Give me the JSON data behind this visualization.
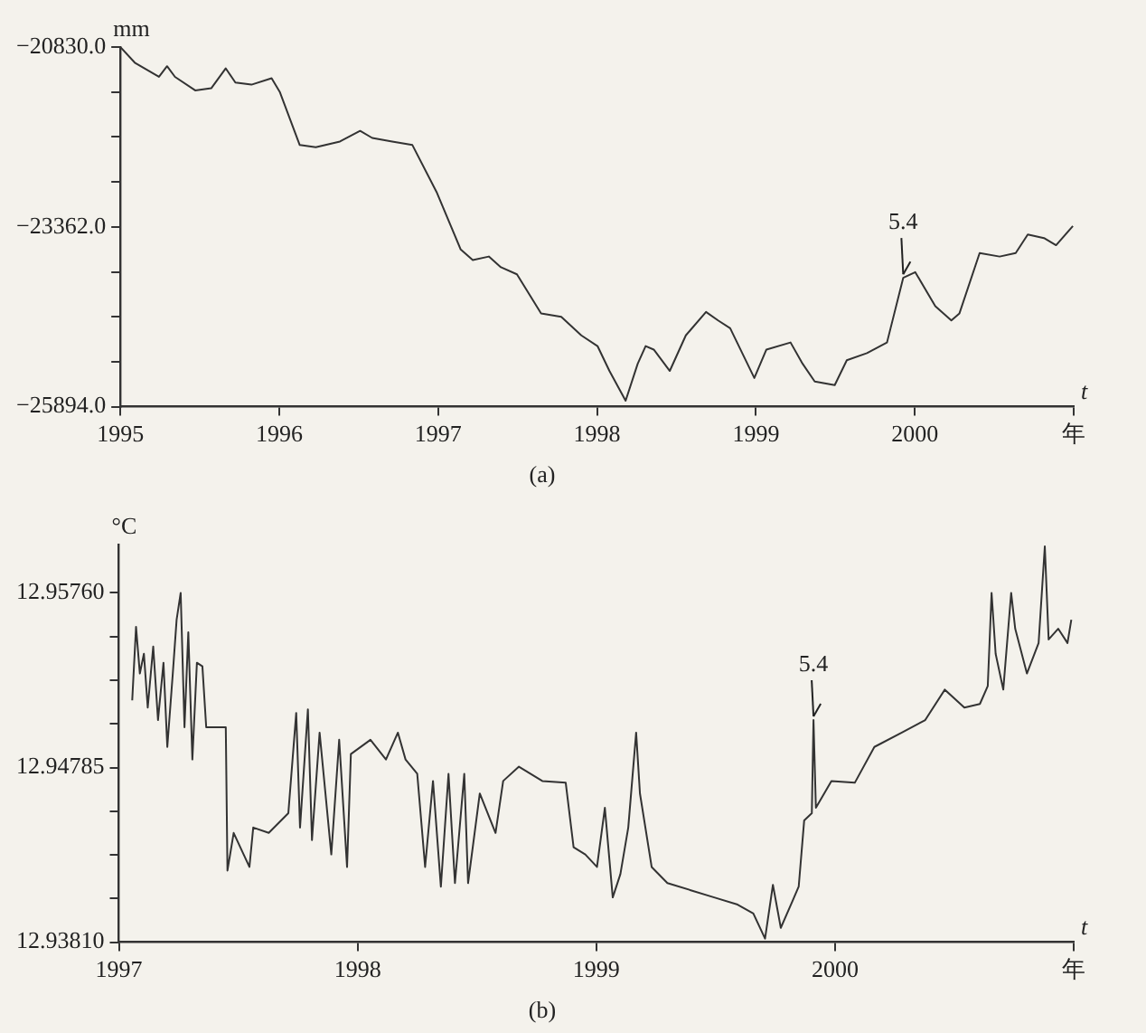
{
  "chart_data": [
    {
      "type": "line",
      "title": "(a)",
      "ylabel": "mm",
      "xlabel": "t",
      "xlim": [
        1995,
        2001
      ],
      "xticks": [
        1995,
        1996,
        1997,
        1998,
        1999,
        2000,
        {
          "value": 2001,
          "label": "年"
        }
      ],
      "ylim": [
        -25894,
        -20830
      ],
      "yticks": [
        {
          "value": -25894,
          "label": "−25894.0"
        },
        {
          "value": -25261,
          "label": null
        },
        {
          "value": -24628,
          "label": null
        },
        {
          "value": -23995,
          "label": null
        },
        {
          "value": -23362,
          "label": "−23362.0"
        },
        {
          "value": -22729,
          "label": null
        },
        {
          "value": -22096,
          "label": null
        },
        {
          "value": -21463,
          "label": null
        },
        {
          "value": -20830,
          "label": "−20830.0"
        }
      ],
      "grid": false,
      "legend": false,
      "annotations": [
        {
          "text": "5.4",
          "x": 1999.927,
          "y": -24080
        }
      ],
      "series": [
        {
          "color": "#333333",
          "x": [
            1995.0,
            1995.091,
            1995.243,
            1995.294,
            1995.344,
            1995.471,
            1995.572,
            1995.663,
            1995.724,
            1995.825,
            1995.952,
            1996.003,
            1996.129,
            1996.23,
            1996.382,
            1996.509,
            1996.585,
            1996.711,
            1996.838,
            1996.99,
            1997.142,
            1997.218,
            1997.319,
            1997.395,
            1997.496,
            1997.648,
            1997.775,
            1997.901,
            1998.003,
            1998.078,
            1998.18,
            1998.256,
            1998.306,
            1998.357,
            1998.458,
            1998.559,
            1998.686,
            1998.762,
            1998.838,
            1998.99,
            1999.066,
            1999.218,
            1999.294,
            1999.37,
            1999.496,
            1999.572,
            1999.699,
            1999.825,
            1999.927,
            2000.003,
            2000.129,
            2000.23,
            2000.281,
            2000.408,
            2000.534,
            2000.635,
            2000.711,
            2000.813,
            2000.889,
            2000.995
          ],
          "values": [
            -20830,
            -21050,
            -21250,
            -21100,
            -21250,
            -21440,
            -21410,
            -21130,
            -21330,
            -21360,
            -21270,
            -21460,
            -22210,
            -22240,
            -22160,
            -22010,
            -22110,
            -22160,
            -22210,
            -22870,
            -23680,
            -23830,
            -23780,
            -23930,
            -24030,
            -24580,
            -24630,
            -24890,
            -25040,
            -25390,
            -25810,
            -25290,
            -25040,
            -25090,
            -25390,
            -24890,
            -24560,
            -24680,
            -24790,
            -25490,
            -25090,
            -24990,
            -25290,
            -25540,
            -25590,
            -25240,
            -25140,
            -24990,
            -24080,
            -24000,
            -24480,
            -24680,
            -24580,
            -23730,
            -23780,
            -23730,
            -23470,
            -23520,
            -23620,
            -23350
          ]
        }
      ]
    },
    {
      "type": "line",
      "title": "(b)",
      "ylabel": "°C",
      "xlabel": "t",
      "xlim": [
        1997,
        2001
      ],
      "xticks": [
        1997,
        1998,
        1999,
        2000,
        {
          "value": 2001,
          "label": "年"
        }
      ],
      "ylim": [
        12.9381,
        12.9603
      ],
      "yticks": [
        {
          "value": 12.9381,
          "label": "12.93810"
        },
        {
          "value": 12.940538,
          "label": null
        },
        {
          "value": 12.942975,
          "label": null
        },
        {
          "value": 12.945413,
          "label": null
        },
        {
          "value": 12.94785,
          "label": "12.94785"
        },
        {
          "value": 12.950288,
          "label": null
        },
        {
          "value": 12.952725,
          "label": null
        },
        {
          "value": 12.955163,
          "label": null
        },
        {
          "value": 12.9576,
          "label": "12.95760"
        }
      ],
      "grid": false,
      "legend": false,
      "annotations": [
        {
          "text": "5.4",
          "x": 1999.91,
          "y": 12.9505
        }
      ],
      "series": [
        {
          "color": "#333333",
          "x": [
            1997.056,
            1997.072,
            1997.088,
            1997.105,
            1997.121,
            1997.144,
            1997.164,
            1997.187,
            1997.203,
            1997.226,
            1997.242,
            1997.259,
            1997.275,
            1997.291,
            1997.308,
            1997.327,
            1997.35,
            1997.366,
            1997.448,
            1997.455,
            1997.481,
            1997.547,
            1997.563,
            1997.628,
            1997.71,
            1997.743,
            1997.759,
            1997.792,
            1997.809,
            1997.841,
            1997.89,
            1997.923,
            1997.956,
            1997.972,
            1998.054,
            1998.119,
            1998.169,
            1998.201,
            1998.25,
            1998.283,
            1998.316,
            1998.349,
            1998.381,
            1998.408,
            1998.447,
            1998.463,
            1998.512,
            1998.578,
            1998.61,
            1998.676,
            1998.774,
            1998.872,
            1998.905,
            1998.954,
            1999.003,
            1999.036,
            1999.069,
            1999.101,
            1999.134,
            1999.167,
            1999.183,
            1999.232,
            1999.298,
            1999.396,
            1999.494,
            1999.592,
            1999.658,
            1999.707,
            1999.74,
            1999.773,
            1999.822,
            1999.848,
            1999.871,
            1999.903,
            1999.91,
            1999.92,
            1999.985,
            2000.083,
            2000.165,
            2000.28,
            2000.378,
            2000.46,
            2000.542,
            2000.607,
            2000.64,
            2000.656,
            2000.673,
            2000.705,
            2000.738,
            2000.755,
            2000.804,
            2000.853,
            2000.879,
            2000.895,
            2000.935,
            2000.974,
            2000.99
          ],
          "values": [
            12.9516,
            12.9557,
            12.9531,
            12.9542,
            12.9512,
            12.9546,
            12.9505,
            12.9537,
            12.949,
            12.9531,
            12.9561,
            12.9576,
            12.9501,
            12.9554,
            12.9483,
            12.9537,
            12.9535,
            12.9501,
            12.9501,
            12.9421,
            12.9442,
            12.9423,
            12.9445,
            12.9442,
            12.9453,
            12.9509,
            12.9445,
            12.9511,
            12.9438,
            12.9498,
            12.943,
            12.9494,
            12.9423,
            12.9486,
            12.9494,
            12.9483,
            12.9498,
            12.9483,
            12.9475,
            12.9423,
            12.9471,
            12.9412,
            12.9475,
            12.9414,
            12.9475,
            12.9414,
            12.9464,
            12.9442,
            12.9471,
            12.9479,
            12.9471,
            12.947,
            12.9434,
            12.943,
            12.9423,
            12.9456,
            12.9406,
            12.9419,
            12.9445,
            12.9498,
            12.9464,
            12.9423,
            12.9414,
            12.941,
            12.9406,
            12.9402,
            12.9397,
            12.9383,
            12.9413,
            12.9389,
            12.9404,
            12.9412,
            12.9449,
            12.9453,
            12.9505,
            12.9456,
            12.9471,
            12.947,
            12.949,
            12.9498,
            12.9505,
            12.9522,
            12.9512,
            12.9514,
            12.9524,
            12.9576,
            12.9542,
            12.9522,
            12.9576,
            12.9556,
            12.9531,
            12.9548,
            12.9602,
            12.955,
            12.9556,
            12.9548,
            12.9561
          ]
        }
      ]
    }
  ]
}
